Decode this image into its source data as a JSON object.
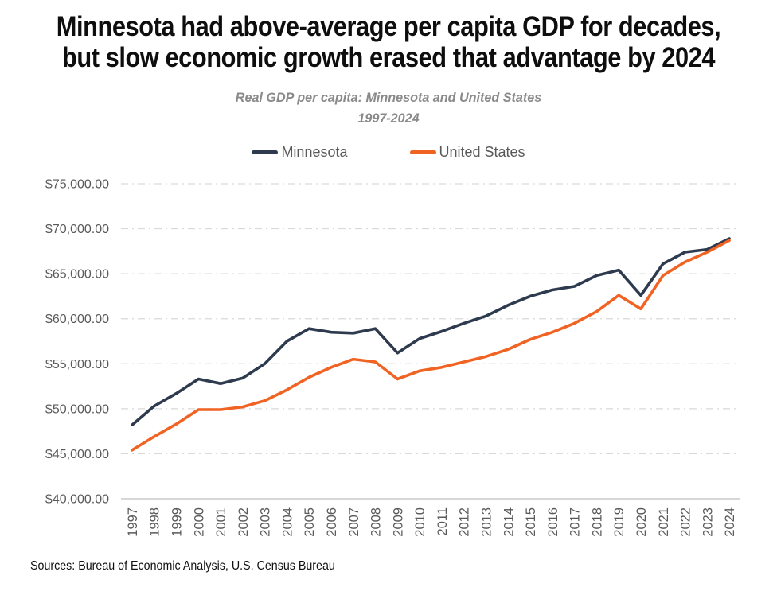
{
  "page": {
    "title_line1": "Minnesota had above-average per capita GDP for decades,",
    "title_line2": "but slow economic growth erased that advantage by 2024",
    "subtitle_line1": "Real GDP per capita: Minnesota and United States",
    "subtitle_line2": "1997-2024",
    "source": "Sources: Bureau of Economic Analysis, U.S. Census Bureau"
  },
  "legend": [
    {
      "label": "Minnesota",
      "color": "#2e3b4e"
    },
    {
      "label": "United States",
      "color": "#f16322"
    }
  ],
  "style": {
    "background": "#ffffff",
    "title_text": "#0e0e0e",
    "subtitle_text": "#8a8a8a",
    "legend_text": "#595959",
    "tick_text": "#5a5a5a",
    "gridline": "#d9d9d9",
    "axis_line": "#bfbfbf",
    "minnesota_line": "#2e3b4e",
    "united_states_line": "#f16322"
  },
  "chart_data": {
    "type": "line",
    "title": "Real GDP per capita: Minnesota and United States 1997-2024",
    "xlabel": "",
    "ylabel": "",
    "x": [
      1997,
      1998,
      1999,
      2000,
      2001,
      2002,
      2003,
      2004,
      2005,
      2006,
      2007,
      2008,
      2009,
      2010,
      2011,
      2012,
      2013,
      2014,
      2015,
      2016,
      2017,
      2018,
      2019,
      2020,
      2021,
      2022,
      2023,
      2024
    ],
    "series": [
      {
        "name": "Minnesota",
        "color": "#2e3b4e",
        "values": [
          48200,
          50300,
          51700,
          53300,
          52800,
          53400,
          55000,
          57500,
          58900,
          58500,
          58400,
          58900,
          56200,
          57800,
          58600,
          59500,
          60300,
          61500,
          62500,
          63200,
          63600,
          64800,
          65400,
          62600,
          66100,
          67400,
          67700,
          68900
        ]
      },
      {
        "name": "United States",
        "color": "#f16322",
        "values": [
          45400,
          46900,
          48300,
          49900,
          49900,
          50200,
          50900,
          52100,
          53500,
          54600,
          55500,
          55200,
          53300,
          54200,
          54600,
          55200,
          55800,
          56600,
          57700,
          58500,
          59500,
          60800,
          62600,
          61100,
          64800,
          66300,
          67400,
          68700
        ]
      }
    ],
    "ylim": [
      40000,
      75000
    ],
    "ytick_step": 5000,
    "ytick_labels": [
      "$40,000.00",
      "$45,000.00",
      "$50,000.00",
      "$55,000.00",
      "$60,000.00",
      "$65,000.00",
      "$70,000.00",
      "$75,000.00"
    ],
    "grid": "horizontal dash-dot",
    "legend_position": "top",
    "x_tick_rotation": "90deg reading bottom-to-top"
  }
}
